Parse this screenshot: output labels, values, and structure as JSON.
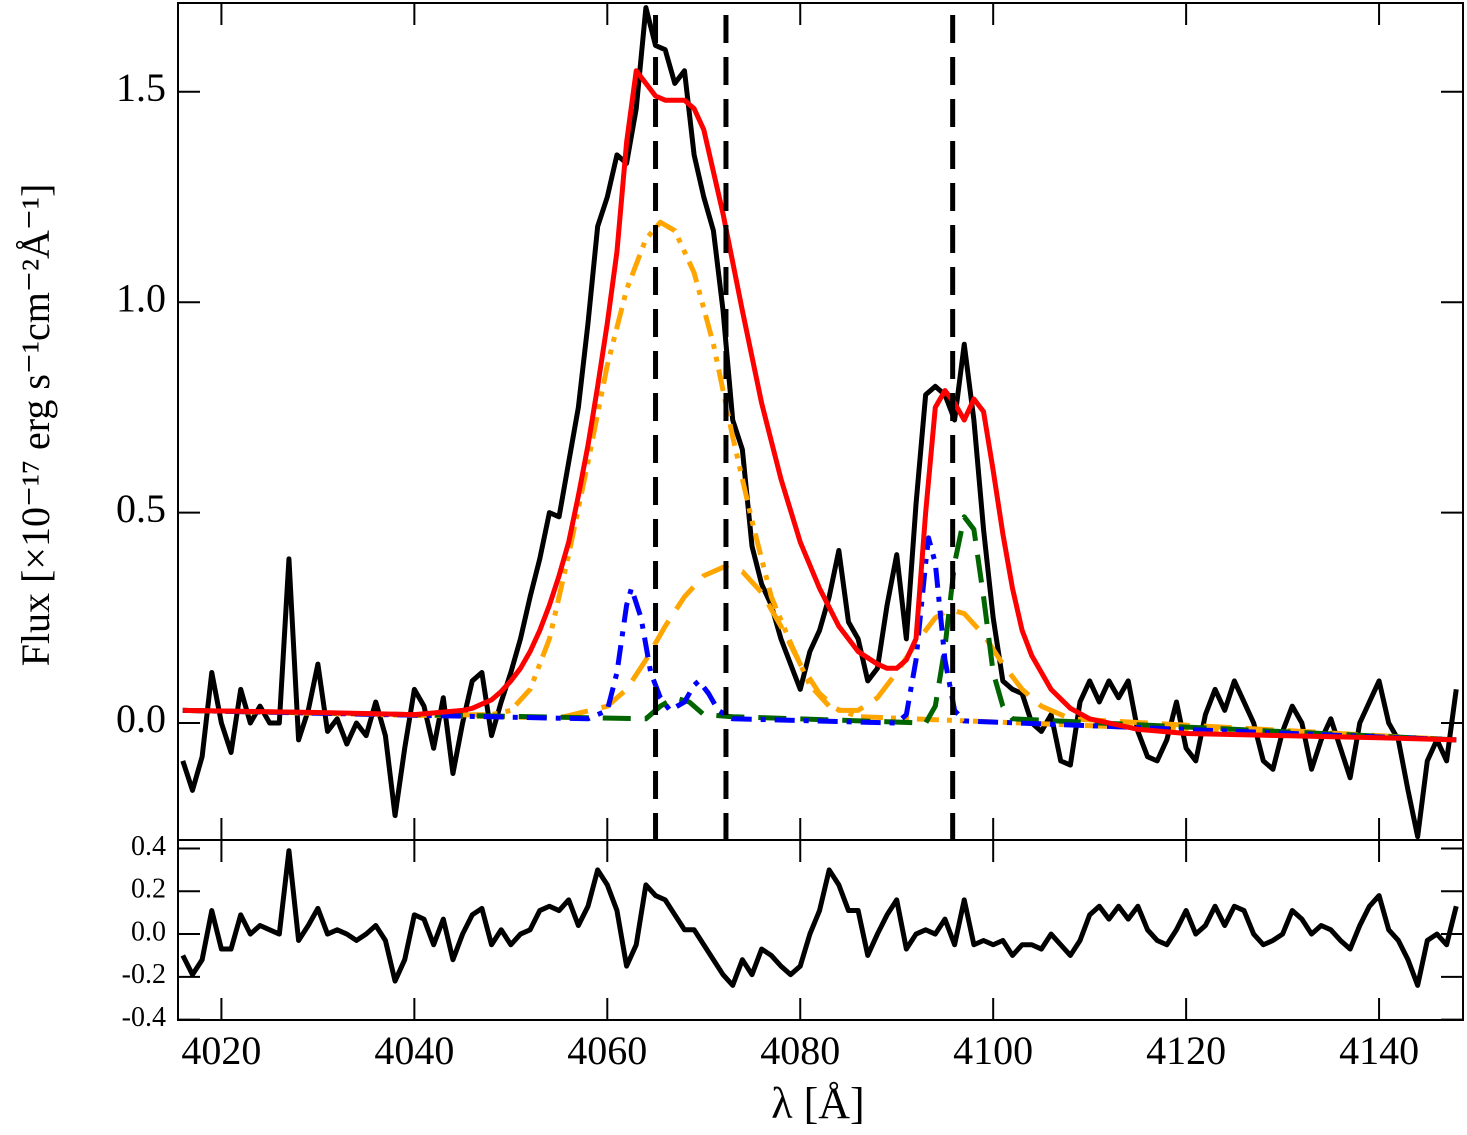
{
  "chart_data": [
    {
      "type": "line",
      "ylabel": "Flux [×10⁻¹⁷ erg s⁻¹cm⁻²Å⁻¹]",
      "xlim": [
        4015.5,
        4148.7
      ],
      "ylim": [
        -0.278,
        1.711
      ],
      "yticks": [
        {
          "value": 0,
          "label": "0.0"
        },
        0.5,
        {
          "value": 1,
          "label": "1.0"
        },
        1.5
      ],
      "vlines": {
        "x": [
          4065.0,
          4072.3,
          4095.8
        ],
        "color": "#000000",
        "dash": "dashed"
      },
      "series": [
        {
          "color": "#000000",
          "dash": "solid",
          "x": [
            4016,
            4017,
            4018,
            4019,
            4020,
            4021,
            4022,
            4023,
            4024,
            4025,
            4026,
            4027,
            4028,
            4029,
            4030,
            4031,
            4032,
            4033,
            4034,
            4035,
            4036,
            4037,
            4038,
            4039,
            4040,
            4041,
            4042,
            4043,
            4044,
            4045,
            4046,
            4047,
            4048,
            4049,
            4050,
            4051,
            4052,
            4053,
            4054,
            4055,
            4056,
            4057,
            4058,
            4059,
            4060,
            4061,
            4062,
            4063,
            4064,
            4065,
            4066,
            4067,
            4068,
            4069,
            4070,
            4071,
            4072,
            4073,
            4074,
            4075,
            4076,
            4077,
            4078,
            4079,
            4080,
            4081,
            4082,
            4083,
            4084,
            4085,
            4086,
            4087,
            4088,
            4089,
            4090,
            4091,
            4092,
            4093,
            4094,
            4095,
            4096,
            4097,
            4098,
            4099,
            4100,
            4101,
            4102,
            4103,
            4104,
            4105,
            4106,
            4107,
            4108,
            4109,
            4110,
            4111,
            4112,
            4113,
            4114,
            4115,
            4116,
            4117,
            4118,
            4119,
            4120,
            4121,
            4122,
            4123,
            4124,
            4125,
            4126,
            4127,
            4128,
            4129,
            4130,
            4131,
            4132,
            4133,
            4134,
            4135,
            4136,
            4137,
            4138,
            4139,
            4140,
            4141,
            4142,
            4143,
            4144,
            4145,
            4146,
            4147,
            4148
          ],
          "values": [
            -0.09,
            -0.16,
            -0.08,
            0.12,
            0.0,
            -0.07,
            0.08,
            0.0,
            0.04,
            0.0,
            0.0,
            0.39,
            -0.04,
            0.03,
            0.14,
            -0.02,
            0.01,
            -0.05,
            0.0,
            -0.03,
            0.05,
            -0.03,
            -0.22,
            -0.06,
            0.08,
            0.04,
            -0.06,
            0.06,
            -0.12,
            0.0,
            0.1,
            0.12,
            -0.03,
            0.05,
            0.12,
            0.2,
            0.3,
            0.39,
            0.5,
            0.49,
            0.62,
            0.75,
            0.95,
            1.18,
            1.25,
            1.35,
            1.33,
            1.46,
            1.7,
            1.61,
            1.6,
            1.52,
            1.55,
            1.35,
            1.25,
            1.17,
            0.98,
            0.72,
            0.65,
            0.42,
            0.33,
            0.28,
            0.2,
            0.14,
            0.08,
            0.17,
            0.22,
            0.3,
            0.41,
            0.24,
            0.2,
            0.1,
            0.13,
            0.28,
            0.4,
            0.2,
            0.52,
            0.78,
            0.8,
            0.78,
            0.72,
            0.9,
            0.72,
            0.46,
            0.25,
            0.1,
            0.08,
            0.07,
            0.0,
            -0.02,
            0.02,
            -0.09,
            -0.1,
            0.05,
            0.1,
            0.05,
            0.1,
            0.06,
            0.1,
            -0.02,
            -0.08,
            -0.09,
            -0.04,
            0.05,
            -0.06,
            -0.09,
            0.02,
            0.08,
            0.03,
            0.1,
            0.05,
            0.0,
            -0.09,
            -0.11,
            -0.02,
            0.04,
            0.0,
            -0.11,
            -0.04,
            0.01,
            -0.06,
            -0.13,
            0.0,
            0.05,
            0.1,
            0.0,
            -0.04,
            -0.16,
            -0.27,
            -0.09,
            -0.04,
            -0.09,
            0.08
          ]
        },
        {
          "color": "#ffa500",
          "dash": "dashdotdot",
          "x": [
            4016,
            4040,
            4048,
            4050,
            4052,
            4054,
            4056,
            4058,
            4060,
            4062,
            4064,
            4065.5,
            4067,
            4069,
            4071,
            4073,
            4075,
            4077,
            4079,
            4081,
            4083,
            4086,
            4148
          ],
          "values": [
            0.03,
            0.018,
            0.02,
            0.03,
            0.08,
            0.2,
            0.4,
            0.62,
            0.85,
            1.03,
            1.15,
            1.19,
            1.17,
            1.07,
            0.9,
            0.68,
            0.48,
            0.3,
            0.19,
            0.09,
            0.04,
            0.015,
            -0.04
          ]
        },
        {
          "color": "#ffa500",
          "dash": "dashed",
          "x": [
            4016,
            4055,
            4060,
            4062,
            4064,
            4066,
            4068,
            4070,
            4072,
            4074,
            4076,
            4078,
            4080,
            4082,
            4084,
            4086,
            4088,
            4090,
            4092,
            4094,
            4095.5,
            4097,
            4099,
            4101,
            4103,
            4105,
            4108,
            4148
          ],
          "values": [
            0.03,
            0.012,
            0.04,
            0.08,
            0.15,
            0.23,
            0.3,
            0.35,
            0.37,
            0.36,
            0.31,
            0.23,
            0.14,
            0.07,
            0.03,
            0.03,
            0.06,
            0.12,
            0.19,
            0.25,
            0.27,
            0.26,
            0.21,
            0.14,
            0.08,
            0.04,
            0.01,
            -0.04
          ]
        },
        {
          "color": "#006400",
          "dash": "dashed",
          "x": [
            4016,
            4064,
            4065.5,
            4067,
            4068.5,
            4070,
            4073,
            4093,
            4094,
            4095,
            4096,
            4097,
            4098,
            4099,
            4100,
            4101,
            4102,
            4148
          ],
          "values": [
            0.03,
            0.01,
            0.04,
            0.06,
            0.05,
            0.02,
            0.015,
            0.0,
            0.04,
            0.18,
            0.38,
            0.49,
            0.46,
            0.3,
            0.12,
            0.04,
            0.01,
            -0.04
          ]
        },
        {
          "color": "#0000ff",
          "dash": "dashdot",
          "x": [
            4016,
            4058,
            4060,
            4061,
            4062,
            4062.5,
            4063.5,
            4064.5,
            4065.5,
            4066.5,
            4068,
            4069,
            4069.5,
            4070.5,
            4071.5,
            4073,
            4090,
            4091,
            4092,
            4093,
            4093.3,
            4094,
            4095,
            4096,
            4097,
            4148
          ],
          "values": [
            0.03,
            0.01,
            0.03,
            0.12,
            0.28,
            0.32,
            0.25,
            0.12,
            0.06,
            0.03,
            0.05,
            0.09,
            0.1,
            0.07,
            0.03,
            0.01,
            0.0,
            0.02,
            0.15,
            0.38,
            0.44,
            0.38,
            0.15,
            0.03,
            0.005,
            -0.04
          ]
        },
        {
          "color": "#ff0000",
          "dash": "solid",
          "x": [
            4016,
            4030,
            4040,
            4045,
            4046,
            4047,
            4048,
            4049,
            4050,
            4051,
            4052,
            4053,
            4054,
            4055,
            4056,
            4057,
            4058,
            4059,
            4060,
            4061,
            4062,
            4063,
            4064,
            4065,
            4066,
            4068,
            4069,
            4070,
            4072,
            4074,
            4076,
            4078,
            4080,
            4082,
            4084,
            4086,
            4088,
            4089,
            4090,
            4091,
            4092,
            4093,
            4094,
            4095,
            4096,
            4097,
            4098,
            4099,
            4100,
            4101,
            4102,
            4103,
            4104,
            4106,
            4108,
            4110,
            4115,
            4120,
            4130,
            4140,
            4148
          ],
          "values": [
            0.03,
            0.025,
            0.02,
            0.03,
            0.035,
            0.045,
            0.055,
            0.075,
            0.1,
            0.13,
            0.17,
            0.22,
            0.28,
            0.35,
            0.43,
            0.54,
            0.66,
            0.8,
            0.95,
            1.12,
            1.38,
            1.55,
            1.52,
            1.49,
            1.48,
            1.48,
            1.46,
            1.41,
            1.21,
            0.98,
            0.76,
            0.58,
            0.43,
            0.32,
            0.23,
            0.17,
            0.14,
            0.13,
            0.13,
            0.15,
            0.2,
            0.5,
            0.75,
            0.79,
            0.76,
            0.72,
            0.77,
            0.74,
            0.6,
            0.45,
            0.32,
            0.22,
            0.16,
            0.08,
            0.035,
            0.01,
            -0.015,
            -0.025,
            -0.03,
            -0.035,
            -0.04
          ]
        }
      ]
    },
    {
      "type": "line",
      "xlabel": "λ [Å]",
      "xlim": [
        4015.5,
        4148.7
      ],
      "ylim": [
        -0.402,
        0.44
      ],
      "xticks": [
        4020,
        4040,
        4060,
        4080,
        4100,
        4120,
        4140
      ],
      "yticks": [
        -0.4,
        -0.2,
        {
          "value": 0,
          "label": "0.0"
        },
        0.2,
        0.4
      ],
      "series": [
        {
          "color": "#000000",
          "dash": "solid",
          "x": [
            4016,
            4017,
            4018,
            4019,
            4020,
            4021,
            4022,
            4023,
            4024,
            4025,
            4026,
            4027,
            4028,
            4029,
            4030,
            4031,
            4032,
            4033,
            4034,
            4035,
            4036,
            4037,
            4038,
            4039,
            4040,
            4041,
            4042,
            4043,
            4044,
            4045,
            4046,
            4047,
            4048,
            4049,
            4050,
            4051,
            4052,
            4053,
            4054,
            4055,
            4056,
            4057,
            4058,
            4059,
            4060,
            4061,
            4062,
            4063,
            4064,
            4065,
            4066,
            4067,
            4068,
            4069,
            4070,
            4071,
            4072,
            4073,
            4074,
            4075,
            4076,
            4077,
            4078,
            4079,
            4080,
            4081,
            4082,
            4083,
            4084,
            4085,
            4086,
            4087,
            4088,
            4089,
            4090,
            4091,
            4092,
            4093,
            4094,
            4095,
            4096,
            4097,
            4098,
            4099,
            4100,
            4101,
            4102,
            4103,
            4104,
            4105,
            4106,
            4107,
            4108,
            4109,
            4110,
            4111,
            4112,
            4113,
            4114,
            4115,
            4116,
            4117,
            4118,
            4119,
            4120,
            4121,
            4122,
            4123,
            4124,
            4125,
            4126,
            4127,
            4128,
            4129,
            4130,
            4131,
            4132,
            4133,
            4134,
            4135,
            4136,
            4137,
            4138,
            4139,
            4140,
            4141,
            4142,
            4143,
            4144,
            4145,
            4146,
            4147,
            4148
          ],
          "values": [
            -0.1,
            -0.19,
            -0.12,
            0.11,
            -0.07,
            -0.07,
            0.09,
            0.0,
            0.04,
            0.02,
            0.0,
            0.39,
            -0.03,
            0.04,
            0.12,
            0.0,
            0.02,
            0.0,
            -0.03,
            0.0,
            0.04,
            -0.03,
            -0.22,
            -0.12,
            0.09,
            0.07,
            -0.05,
            0.07,
            -0.12,
            0.0,
            0.09,
            0.12,
            -0.05,
            0.02,
            -0.05,
            0.0,
            0.02,
            0.11,
            0.13,
            0.11,
            0.16,
            0.04,
            0.13,
            0.3,
            0.23,
            0.11,
            -0.15,
            -0.05,
            0.23,
            0.18,
            0.16,
            0.09,
            0.02,
            0.02,
            -0.05,
            -0.12,
            -0.19,
            -0.24,
            -0.12,
            -0.19,
            -0.07,
            -0.1,
            -0.15,
            -0.19,
            -0.15,
            0.0,
            0.11,
            0.3,
            0.23,
            0.11,
            0.11,
            -0.1,
            0.0,
            0.09,
            0.16,
            -0.07,
            0.0,
            0.02,
            0.0,
            0.07,
            -0.05,
            0.16,
            -0.05,
            -0.03,
            -0.05,
            -0.03,
            -0.1,
            -0.05,
            -0.05,
            -0.07,
            0.0,
            -0.05,
            -0.1,
            -0.03,
            0.09,
            0.13,
            0.07,
            0.13,
            0.07,
            0.13,
            0.02,
            -0.03,
            -0.05,
            0.02,
            0.11,
            0.0,
            0.04,
            0.13,
            0.04,
            0.13,
            0.11,
            0.0,
            -0.05,
            -0.03,
            0.0,
            0.11,
            0.07,
            0.0,
            0.04,
            0.02,
            -0.03,
            -0.07,
            0.04,
            0.13,
            0.18,
            0.02,
            -0.03,
            -0.12,
            -0.24,
            -0.03,
            0.0,
            -0.05,
            0.13
          ]
        }
      ]
    }
  ]
}
